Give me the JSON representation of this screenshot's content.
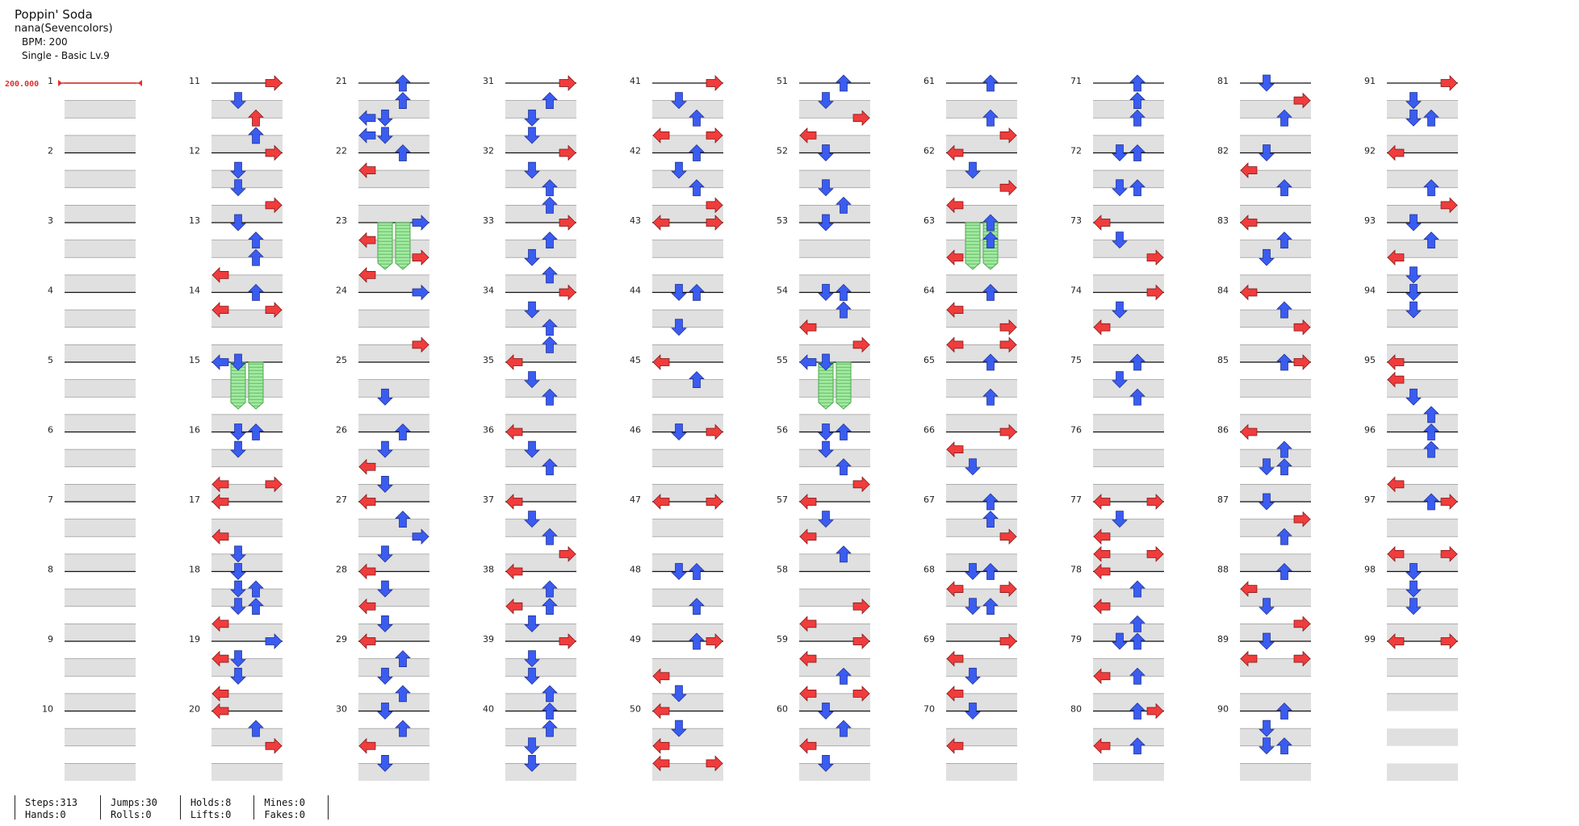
{
  "song": {
    "title": "Poppin' Soda",
    "artist": "nana(Sevencolors)",
    "bpm_label": "BPM: 200",
    "difficulty_label": "Single - Basic  Lv.9"
  },
  "bpm_marker": "200.000",
  "colors": {
    "note_quarter": "#f03c3c",
    "note_eighth": "#3a5cf0",
    "hold": "#9be39b",
    "row_band": "#e0e0e0"
  },
  "measures": [
    "0000,0000,0000,0000",
    "0000,0000,0000,0000",
    "0000,0000,0000,0000",
    "0000,0000,0000,0000",
    "0000,0000,0000,0000",
    "0000,0000,0000,0000",
    "0000,0000,0000,0000",
    "0000,0000,0000,0000",
    "0000,0000,0000,0000",
    "0000,0000,0000,0000",
    "0003,0200,0030,0020",
    "0003,0200,0200,0003",
    "0200,0020,0020,1000",
    "0020,1003,0000,0000",
    "2200,0000,0000,0000",
    "0220,0200,0000,1003",
    "1000,0000,1000,0200",
    "0200,0220,0220,1000",
    "0002,1200,0200,1000",
    "1000,0020,0003,0000",
    "0020,0020,2200,2200",
    "0020,1000,0000,0000",
    "0002,1000,0003,1000",
    "0002,0000,0000,0003",
    "0000,0000,0200,0000",
    "0020,0200,1000,0200",
    "1000,0020,0002,0200",
    "1000,0200,1000,0200",
    "1000,0020,0200,0020",
    "0200,0020,1000,0200",
    "0003,0020,0200,0200",
    "0003,0200,0020,0020",
    "0003,0020,0200,0020",
    "0003,0200,0020,0020",
    "1000,0200,0020,0000",
    "1000,0200,0020,0000",
    "1000,0200,0020,0003",
    "1000,0020,1020,0200",
    "0003,0200,0200,0020",
    "0020,0020,0200,0200",
    "0003,0200,0020,1003",
    "0020,0200,0020,0003",
    "1003,0000,0000,0000",
    "0220,0000,0200,0000",
    "1000,0020,0000,0000",
    "0203,0000,0000,0000",
    "1003,0000,0000,0000",
    "0220,0000,0020,0000",
    "0023,0000,1000,0200",
    "1000,0200,1000,1003",
    "0020,0200,0003,1000",
    "0200,0000,0200,0020",
    "0200,0000,0000,0000",
    "0220,0020,1000,0003",
    "2200,0000,0000,0000",
    "0220,0200,0020,0003",
    "1000,0200,1000,0020",
    "0000,0000,0003,1000",
    "0003,1000,0020,1003",
    "0200,0020,1000,0200",
    "0020,0000,0020,0003",
    "1000,0200,0003,1000",
    "0020,0020,1000,0000",
    "0020,1000,0003,1003",
    "0020,0000,0020,0000",
    "0003,1000,0200,0000",
    "0020,0020,0003,0000",
    "0220,1003,0220,0000",
    "0003,1000,0200,1000",
    "0200,0000,1000,0000",
    "0020,0020,0020,0000",
    "0220,0000,0220,0000",
    "1000,0200,0003,0000",
    "0003,0200,1000,0000",
    "0020,0200,0020,0000",
    "0000,0000,0000,0000",
    "1003,0200,1000,1003",
    "1000,0020,1000,0020",
    "0220,0000,1020,0000",
    "0023,0000,1020,0000",
    "0200,0003,0020,0000",
    "0200,1000,0020,0000",
    "1000,0020,0200,0000",
    "1000,0020,0003,0000",
    "0023,0000,0000,0000",
    "1000,0020,0220,0000",
    "0200,0003,0020,0000",
    "0020,1000,0200,0003",
    "0200,1003,0000,0000",
    "0020,0200,0220,0000",
    "0003,0200,0220,0000",
    "1000,0000,0020,0003",
    "0200,0020,1000,0200",
    "0200,0200,0000,0000",
    "1000,1000,0200,0020",
    "0020,0020,0000,1000",
    "0023,0000,0000,1003",
    "0200,0200,0200,0000",
    "1003,0000,0000,0000"
  ],
  "stats": {
    "steps": "Steps:313",
    "hands": "Hands:0",
    "jumps": "Jumps:30",
    "rolls": "Rolls:0",
    "holds": "Holds:8",
    "lifts": "Lifts:0",
    "mines": "Mines:0",
    "fakes": "Fakes:0"
  }
}
